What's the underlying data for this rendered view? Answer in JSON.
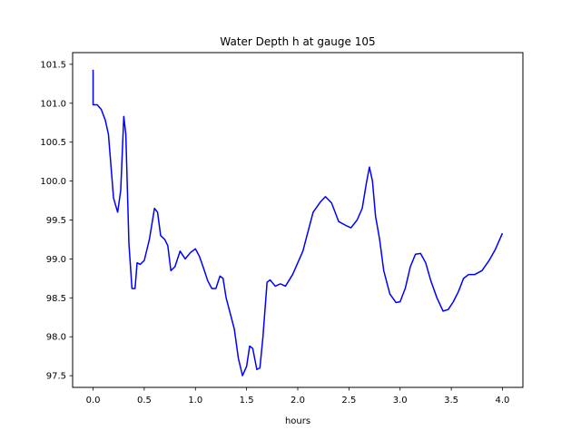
{
  "chart_data": {
    "type": "line",
    "title": "Water Depth h at gauge 105",
    "xlabel": "hours",
    "ylabel": "",
    "xlim": [
      -0.2,
      4.2
    ],
    "ylim": [
      97.35,
      101.65
    ],
    "xticks": [
      "0.0",
      "0.5",
      "1.0",
      "1.5",
      "2.0",
      "2.5",
      "3.0",
      "3.5",
      "4.0"
    ],
    "yticks": [
      "97.5",
      "98.0",
      "98.5",
      "99.0",
      "99.5",
      "100.0",
      "100.5",
      "101.0",
      "101.5"
    ],
    "grid": false,
    "legend": "none",
    "series": [
      {
        "color": "#0000ff",
        "x": [
          0.0,
          0.0,
          0.0,
          0.04,
          0.08,
          0.12,
          0.15,
          0.2,
          0.24,
          0.27,
          0.3,
          0.32,
          0.35,
          0.38,
          0.41,
          0.43,
          0.46,
          0.5,
          0.55,
          0.6,
          0.63,
          0.66,
          0.7,
          0.73,
          0.76,
          0.8,
          0.85,
          0.9,
          0.95,
          1.0,
          1.04,
          1.08,
          1.12,
          1.16,
          1.2,
          1.24,
          1.27,
          1.3,
          1.34,
          1.38,
          1.42,
          1.46,
          1.5,
          1.53,
          1.56,
          1.6,
          1.63,
          1.66,
          1.7,
          1.73,
          1.78,
          1.83,
          1.88,
          1.95,
          2.05,
          2.15,
          2.22,
          2.27,
          2.33,
          2.4,
          2.47,
          2.52,
          2.58,
          2.63,
          2.67,
          2.7,
          2.73,
          2.76,
          2.8,
          2.84,
          2.9,
          2.96,
          3.0,
          3.05,
          3.1,
          3.15,
          3.2,
          3.25,
          3.3,
          3.36,
          3.42,
          3.47,
          3.52,
          3.57,
          3.62,
          3.67,
          3.73,
          3.8,
          3.87,
          3.93,
          4.0
        ],
        "y": [
          101.43,
          101.3,
          100.98,
          100.98,
          100.92,
          100.78,
          100.6,
          99.78,
          99.6,
          99.88,
          100.83,
          100.6,
          99.2,
          98.62,
          98.62,
          98.95,
          98.93,
          98.98,
          99.25,
          99.65,
          99.6,
          99.3,
          99.25,
          99.17,
          98.85,
          98.9,
          99.1,
          99.0,
          99.08,
          99.13,
          99.03,
          98.88,
          98.72,
          98.62,
          98.62,
          98.78,
          98.75,
          98.5,
          98.3,
          98.1,
          97.72,
          97.5,
          97.62,
          97.88,
          97.85,
          97.58,
          97.6,
          98.0,
          98.7,
          98.73,
          98.65,
          98.68,
          98.65,
          98.8,
          99.1,
          99.6,
          99.73,
          99.8,
          99.72,
          99.48,
          99.43,
          99.4,
          99.5,
          99.65,
          99.97,
          100.18,
          100.0,
          99.55,
          99.25,
          98.85,
          98.55,
          98.44,
          98.45,
          98.62,
          98.9,
          99.06,
          99.07,
          98.95,
          98.72,
          98.5,
          98.33,
          98.35,
          98.45,
          98.58,
          98.75,
          98.8,
          98.8,
          98.85,
          98.98,
          99.12,
          99.33
        ]
      }
    ]
  }
}
